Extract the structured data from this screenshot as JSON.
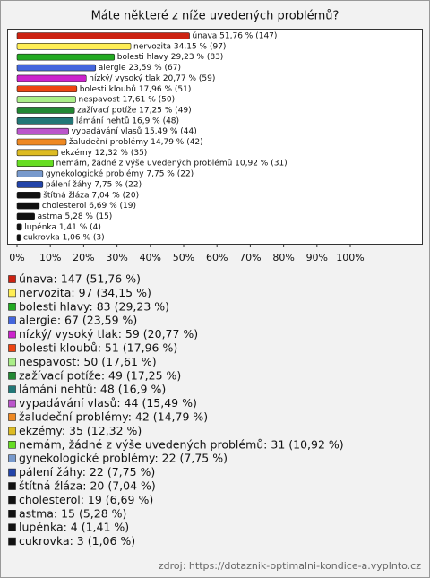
{
  "chart_data": {
    "type": "bar",
    "horizontal": true,
    "title": "Máte některé z níže uvedených problémů?",
    "values": [
      51.76,
      34.15,
      29.23,
      23.59,
      20.77,
      17.96,
      17.61,
      17.25,
      16.9,
      15.49,
      14.79,
      12.32,
      10.92,
      7.75,
      7.75,
      7.04,
      6.69,
      5.28,
      1.41,
      1.06
    ],
    "value_labels": [
      "únava 51,76 % (147)",
      "nervozita 34,15 % (97)",
      "bolesti hlavy 29,23 % (83)",
      "alergie 23,59 % (67)",
      "nízký/ vysoký tlak 20,77 % (59)",
      "bolesti kloubů 17,96 % (51)",
      "nespavost 17,61 % (50)",
      "zažívací potíže 17,25 % (49)",
      "lámání nehtů 16,9 % (48)",
      "vypadávání vlasů 15,49 % (44)",
      "žaludeční problémy 14,79 % (42)",
      "ekzémy 12,32 % (35)",
      "nemám, žádné z výše uvedených problémů 10,92 % (31)",
      "gynekologické problémy 7,75 % (22)",
      "pálení žáhy 7,75 % (22)",
      "štítná žláza 7,04 % (20)",
      "cholesterol 6,69 % (19)",
      "astma 5,28 % (15)",
      "lupénka 1,41 % (4)",
      "cukrovka 1,06 % (3)"
    ],
    "colors": [
      "#cc2211",
      "#ffee55",
      "#22aa22",
      "#4466dd",
      "#cc22cc",
      "#ee4411",
      "#aaee88",
      "#228833",
      "#227777",
      "#bb55cc",
      "#ee8822",
      "#ddbb22",
      "#66dd22",
      "#7799cc",
      "#2244aa",
      "#111111",
      "#111111",
      "#111111",
      "#111111",
      "#111111"
    ],
    "legend": [
      "únava: 147 (51,76 %)",
      "nervozita: 97 (34,15 %)",
      "bolesti hlavy: 83 (29,23 %)",
      "alergie: 67 (23,59 %)",
      "nízký/ vysoký tlak: 59 (20,77 %)",
      "bolesti kloubů: 51 (17,96 %)",
      "nespavost: 50 (17,61 %)",
      "zažívací potíže: 49 (17,25 %)",
      "lámání nehtů: 48 (16,9 %)",
      "vypadávání vlasů: 44 (15,49 %)",
      "žaludeční problémy: 42 (14,79 %)",
      "ekzémy: 35 (12,32 %)",
      "nemám, žádné z výše uvedených problémů: 31 (10,92 %)",
      "gynekologické problémy: 22 (7,75 %)",
      "pálení žáhy: 22 (7,75 %)",
      "štítná žláza: 20 (7,04 %)",
      "cholesterol: 19 (6,69 %)",
      "astma: 15 (5,28 %)",
      "lupénka: 4 (1,41 %)",
      "cukrovka: 3 (1,06 %)"
    ],
    "xlim": [
      0,
      100
    ],
    "xticks": [
      {
        "value": 0,
        "label": "0%"
      },
      {
        "value": 10,
        "label": "10%"
      },
      {
        "value": 20,
        "label": "20%"
      },
      {
        "value": 30,
        "label": "30%"
      },
      {
        "value": 40,
        "label": "40%"
      },
      {
        "value": 50,
        "label": "50%"
      },
      {
        "value": 60,
        "label": "60%"
      },
      {
        "value": 70,
        "label": "70%"
      },
      {
        "value": 80,
        "label": "80%"
      },
      {
        "value": 90,
        "label": "90%"
      },
      {
        "value": 100,
        "label": "100%"
      }
    ],
    "source": "zdroj: https://dotaznik-optimalni-kondice-a.vyplnto.cz"
  }
}
